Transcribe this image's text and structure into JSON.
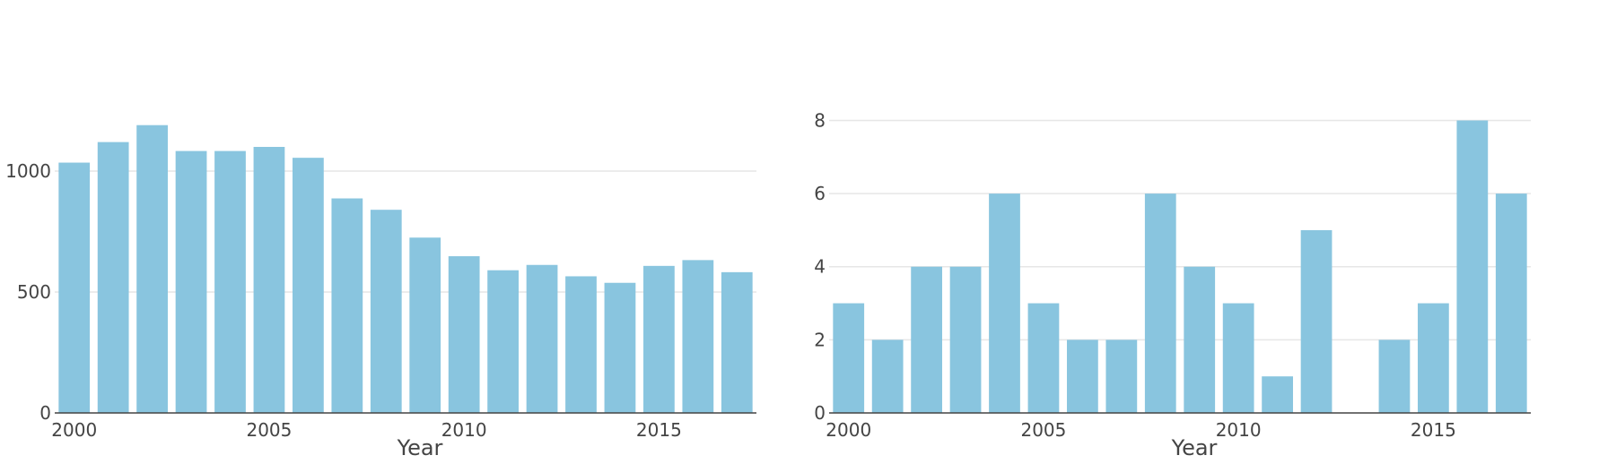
{
  "colors": {
    "bar": "#89c5df",
    "grid": "#e6e6e6",
    "axis_line": "#444444",
    "text": "#444444"
  },
  "chart_data": [
    {
      "type": "bar",
      "xlabel": "Year",
      "ylabel": "",
      "x": [
        2000,
        2001,
        2002,
        2003,
        2004,
        2005,
        2006,
        2007,
        2008,
        2009,
        2010,
        2011,
        2012,
        2013,
        2014,
        2015,
        2016,
        2017
      ],
      "values": [
        1035,
        1120,
        1190,
        1083,
        1083,
        1100,
        1055,
        887,
        840,
        725,
        648,
        590,
        612,
        565,
        538,
        608,
        632,
        582
      ],
      "ylim": [
        0,
        1300
      ],
      "yticks": [
        0,
        500,
        1000
      ],
      "xticks": [
        2000,
        2005,
        2010,
        2015
      ],
      "ytick_labels": [
        "0",
        "500",
        "1000"
      ],
      "xtick_labels": [
        "2000",
        "2005",
        "2010",
        "2015"
      ],
      "grid": true,
      "legend": "none"
    },
    {
      "type": "bar",
      "xlabel": "Year",
      "ylabel": "",
      "x": [
        2000,
        2001,
        2002,
        2003,
        2004,
        2005,
        2006,
        2007,
        2008,
        2009,
        2010,
        2011,
        2012,
        2013,
        2014,
        2015,
        2016,
        2017
      ],
      "values": [
        3,
        2,
        4,
        4,
        6,
        3,
        2,
        2,
        6,
        4,
        3,
        1,
        5,
        0,
        2,
        3,
        8,
        6
      ],
      "ylim": [
        0,
        8.6
      ],
      "yticks": [
        0,
        2,
        4,
        6,
        8
      ],
      "xticks": [
        2000,
        2005,
        2010,
        2015
      ],
      "ytick_labels": [
        "0",
        "2",
        "4",
        "6",
        "8"
      ],
      "xtick_labels": [
        "2000",
        "2005",
        "2010",
        "2015"
      ],
      "grid": true,
      "legend": "none"
    }
  ]
}
